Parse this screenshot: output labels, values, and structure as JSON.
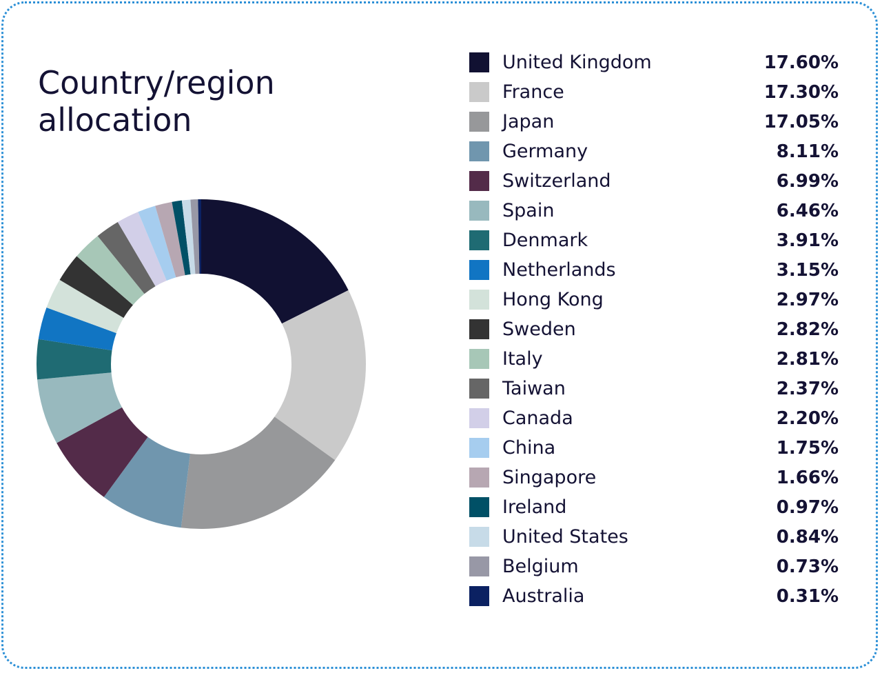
{
  "title": "Country/region\nallocation",
  "chart_data": {
    "type": "pie",
    "title": "Country/region allocation",
    "donut": true,
    "legend_position": "right",
    "categories": [
      "United Kingdom",
      "France",
      "Japan",
      "Germany",
      "Switzerland",
      "Spain",
      "Denmark",
      "Netherlands",
      "Hong Kong",
      "Sweden",
      "Italy",
      "Taiwan",
      "Canada",
      "China",
      "Singapore",
      "Ireland",
      "United States",
      "Belgium",
      "Australia"
    ],
    "values": [
      17.6,
      17.3,
      17.05,
      8.11,
      6.99,
      6.46,
      3.91,
      3.15,
      2.97,
      2.82,
      2.81,
      2.37,
      2.2,
      1.75,
      1.66,
      0.97,
      0.84,
      0.73,
      0.31
    ],
    "labels": [
      "17.60%",
      "17.30%",
      "17.05%",
      "8.11%",
      "6.99%",
      "6.46%",
      "3.91%",
      "3.15%",
      "2.97%",
      "2.82%",
      "2.81%",
      "2.37%",
      "2.20%",
      "1.75%",
      "1.66%",
      "0.97%",
      "0.84%",
      "0.73%",
      "0.31%"
    ],
    "colors": [
      "#111132",
      "#cacaca",
      "#97989a",
      "#7096ae",
      "#532b49",
      "#98b9be",
      "#1f6b73",
      "#1175c3",
      "#d3e2da",
      "#333333",
      "#a7c7b7",
      "#666666",
      "#d2cfe8",
      "#a6cdef",
      "#b7a7b2",
      "#005066",
      "#c7dbe8",
      "#9898a6",
      "#0b2162"
    ]
  }
}
